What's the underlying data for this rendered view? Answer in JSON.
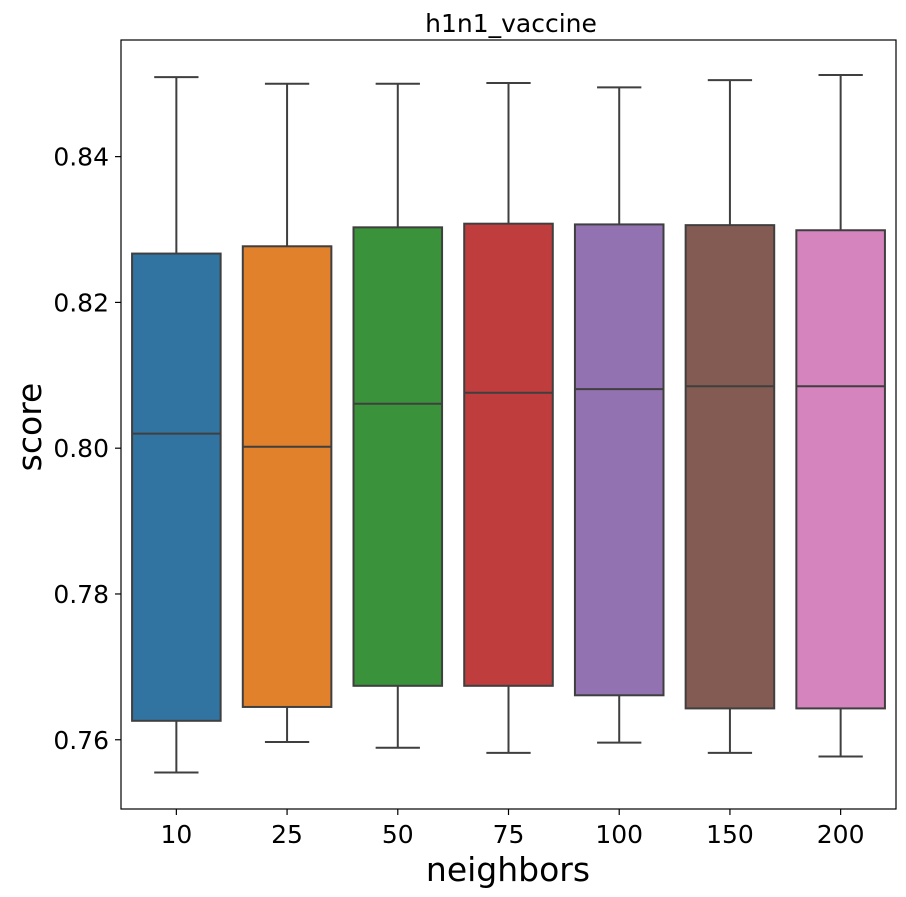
{
  "chart_data": {
    "type": "box",
    "title": "h1n1_vaccine",
    "xlabel": "neighbors",
    "ylabel": "score",
    "ylim": [
      0.7505,
      0.856
    ],
    "yticks": [
      0.76,
      0.78,
      0.8,
      0.82,
      0.84
    ],
    "ytick_labels": [
      "0.76",
      "0.78",
      "0.80",
      "0.82",
      "0.84"
    ],
    "grid": false,
    "categories": [
      "10",
      "25",
      "50",
      "75",
      "100",
      "150",
      "200"
    ],
    "boxes": [
      {
        "category": "10",
        "whisker_low": 0.7555,
        "q1": 0.7626,
        "median": 0.802,
        "q3": 0.8267,
        "whisker_high": 0.8509,
        "color": "#3274a1"
      },
      {
        "category": "25",
        "whisker_low": 0.7597,
        "q1": 0.7645,
        "median": 0.8002,
        "q3": 0.8277,
        "whisker_high": 0.85,
        "color": "#e1812c"
      },
      {
        "category": "50",
        "whisker_low": 0.7589,
        "q1": 0.7674,
        "median": 0.8061,
        "q3": 0.8303,
        "whisker_high": 0.85,
        "color": "#3a923a"
      },
      {
        "category": "75",
        "whisker_low": 0.7582,
        "q1": 0.7674,
        "median": 0.8076,
        "q3": 0.8308,
        "whisker_high": 0.8501,
        "color": "#c03d3e"
      },
      {
        "category": "100",
        "whisker_low": 0.7596,
        "q1": 0.7661,
        "median": 0.8081,
        "q3": 0.8307,
        "whisker_high": 0.8495,
        "color": "#9372b2"
      },
      {
        "category": "150",
        "whisker_low": 0.7582,
        "q1": 0.7643,
        "median": 0.8085,
        "q3": 0.8306,
        "whisker_high": 0.8505,
        "color": "#845b53"
      },
      {
        "category": "200",
        "whisker_low": 0.7577,
        "q1": 0.7643,
        "median": 0.8085,
        "q3": 0.8299,
        "whisker_high": 0.8512,
        "color": "#d684bd"
      }
    ],
    "line_color": "#3f3f3f"
  }
}
